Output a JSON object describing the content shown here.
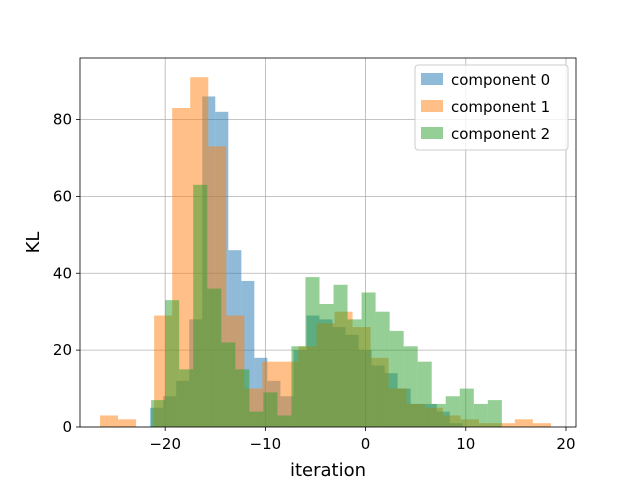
{
  "chart_data": {
    "type": "histogram",
    "title": "",
    "xlabel": "iteration",
    "ylabel": "KL",
    "xlim": [
      -28.5,
      21
    ],
    "ylim": [
      0,
      96
    ],
    "xticks": [
      -20,
      -10,
      0,
      10,
      20
    ],
    "xtick_labels": [
      "−20",
      "−10",
      "0",
      "10",
      "20"
    ],
    "yticks": [
      0,
      20,
      40,
      60,
      80
    ],
    "ytick_labels": [
      "0",
      "20",
      "40",
      "60",
      "80"
    ],
    "grid": true,
    "legend_position": "top-right",
    "series": [
      {
        "name": "component 0",
        "color": "#1f77b4",
        "bin_edges": [
          -21.5,
          -20.2,
          -18.9,
          -17.6,
          -16.3,
          -15.0,
          -13.7,
          -12.4,
          -11.1,
          -9.8,
          -8.5,
          -7.2,
          -5.9,
          -4.6,
          -3.3,
          -2.0,
          -0.7,
          0.6,
          1.9,
          3.2,
          4.5,
          5.8,
          7.1,
          8.4,
          9.7
        ],
        "counts": [
          5,
          8,
          12,
          28,
          86,
          82,
          46,
          38,
          18,
          12,
          8,
          20,
          29,
          28,
          26,
          24,
          20,
          16,
          14,
          10,
          6,
          6,
          4,
          1
        ]
      },
      {
        "name": "component 1",
        "color": "#ff7f0e",
        "bin_edges": [
          -26.5,
          -24.7,
          -22.9,
          -21.1,
          -19.3,
          -17.5,
          -15.7,
          -13.9,
          -12.1,
          -10.3,
          -8.5,
          -6.7,
          -4.9,
          -3.1,
          -1.3,
          0.5,
          2.3,
          4.1,
          5.9,
          7.7,
          9.5,
          11.3,
          13.1,
          14.9,
          16.7,
          18.5
        ],
        "counts": [
          3,
          2,
          0,
          29,
          83,
          91,
          73,
          29,
          10,
          17,
          17,
          21,
          27,
          30,
          26,
          18,
          10,
          6,
          5,
          3,
          2,
          1,
          1,
          2,
          1
        ]
      },
      {
        "name": "component 2",
        "color": "#2ca02c",
        "bin_edges": [
          -21.4,
          -20.0,
          -18.6,
          -17.2,
          -15.8,
          -14.4,
          -13.0,
          -11.6,
          -10.2,
          -8.8,
          -7.4,
          -6.0,
          -4.6,
          -3.2,
          -1.8,
          -0.4,
          1.0,
          2.4,
          3.8,
          5.2,
          6.6,
          8.0,
          9.4,
          10.8,
          12.2,
          13.6
        ],
        "counts": [
          7,
          33,
          15,
          63,
          36,
          22,
          15,
          4,
          9,
          3,
          21,
          39,
          32,
          37,
          28,
          35,
          30,
          25,
          21,
          17,
          6,
          8,
          10,
          6,
          7
        ]
      }
    ]
  }
}
